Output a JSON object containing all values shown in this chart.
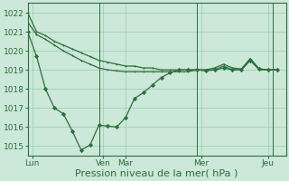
{
  "background_color": "#cce8d8",
  "grid_color": "#99ccb0",
  "line_color": "#2d6e3e",
  "marker_color": "#2d6e3e",
  "ylim": [
    1014.5,
    1022.5
  ],
  "yticks": [
    1015,
    1016,
    1017,
    1018,
    1019,
    1020,
    1021,
    1022
  ],
  "xlabel": "Pression niveau de la mer( hPa )",
  "xlabel_fontsize": 8,
  "tick_fontsize": 6.5,
  "day_labels": [
    "Lun",
    "Ven",
    "Mar",
    "Mer",
    "Jeu"
  ],
  "day_positions": [
    0.5,
    8.5,
    11.0,
    19.5,
    27.0
  ],
  "vline_positions": [
    8.0,
    19.0,
    27.5
  ],
  "xlim": [
    0,
    29
  ],
  "series1_x": [
    0,
    1,
    2,
    3,
    4,
    5,
    6,
    7,
    8,
    9,
    10,
    11,
    12,
    13,
    14,
    15,
    16,
    17,
    18,
    19,
    20,
    21,
    22,
    23,
    24,
    25,
    26,
    27,
    28
  ],
  "series1_y": [
    1022.0,
    1021.0,
    1020.8,
    1020.5,
    1020.3,
    1020.1,
    1019.9,
    1019.7,
    1019.5,
    1019.4,
    1019.3,
    1019.2,
    1019.2,
    1019.1,
    1019.1,
    1019.0,
    1019.0,
    1019.0,
    1019.0,
    1019.0,
    1019.0,
    1019.1,
    1019.3,
    1019.1,
    1019.05,
    1019.6,
    1019.05,
    1019.0,
    1019.0
  ],
  "series2_x": [
    0,
    1,
    2,
    3,
    4,
    5,
    6,
    7,
    8,
    9,
    10,
    11,
    12,
    13,
    14,
    15,
    16,
    17,
    18,
    19,
    20,
    21,
    22,
    23,
    24,
    25,
    26,
    27,
    28
  ],
  "series2_y": [
    1021.5,
    1020.85,
    1020.6,
    1020.3,
    1020.0,
    1019.75,
    1019.5,
    1019.3,
    1019.1,
    1019.0,
    1018.95,
    1018.9,
    1018.9,
    1018.9,
    1018.9,
    1018.9,
    1018.9,
    1018.9,
    1018.9,
    1019.0,
    1019.0,
    1019.0,
    1019.2,
    1019.0,
    1019.0,
    1019.5,
    1019.0,
    1019.0,
    1019.0
  ],
  "series3_x": [
    0,
    1,
    2,
    3,
    4,
    5,
    6,
    7,
    8,
    9,
    10,
    11,
    12,
    13,
    14,
    15,
    16,
    17,
    18,
    19,
    20,
    21,
    22,
    23,
    24,
    25,
    26,
    27,
    28
  ],
  "series3_y": [
    1021.0,
    1019.7,
    1018.0,
    1017.0,
    1016.7,
    1015.8,
    1014.8,
    1015.05,
    1016.1,
    1016.05,
    1016.0,
    1016.5,
    1017.5,
    1017.8,
    1018.2,
    1018.6,
    1018.85,
    1019.0,
    1019.0,
    1019.0,
    1018.95,
    1019.0,
    1019.1,
    1019.0,
    1019.0,
    1019.5,
    1019.05,
    1019.0,
    1019.0
  ]
}
